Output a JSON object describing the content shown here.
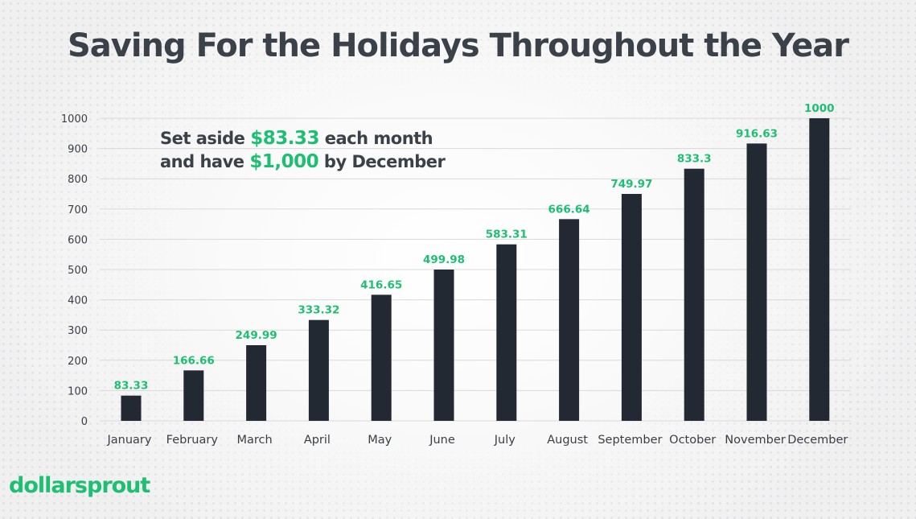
{
  "title": "Saving For the Holidays Throughout the Year",
  "callout": {
    "line1_prefix": "Set aside",
    "line1_amount": "$83.33",
    "line1_suffix": "each month",
    "line2_prefix": "and have",
    "line2_amount": "$1,000",
    "line2_suffix": "by December"
  },
  "brand": {
    "logo_text": "dollarsprout",
    "accent_color": "#1fbf73",
    "bar_color": "#232933"
  },
  "chart_data": {
    "type": "bar",
    "title": "Saving For the Holidays Throughout the Year",
    "xlabel": "",
    "ylabel": "",
    "ylim": [
      0,
      1000
    ],
    "yticks": [
      0,
      100,
      200,
      300,
      400,
      500,
      600,
      700,
      800,
      900,
      1000
    ],
    "grid": true,
    "categories": [
      "January",
      "February",
      "March",
      "April",
      "May",
      "June",
      "July",
      "August",
      "September",
      "October",
      "November",
      "December"
    ],
    "values": [
      83.33,
      166.66,
      249.99,
      333.32,
      416.65,
      499.98,
      583.31,
      666.64,
      749.97,
      833.3,
      916.63,
      1000
    ],
    "data_labels": [
      "83.33",
      "166.66",
      "249.99",
      "333.32",
      "416.65",
      "499.98",
      "583.31",
      "666.64",
      "749.97",
      "833.3",
      "916.63",
      "1000"
    ]
  }
}
